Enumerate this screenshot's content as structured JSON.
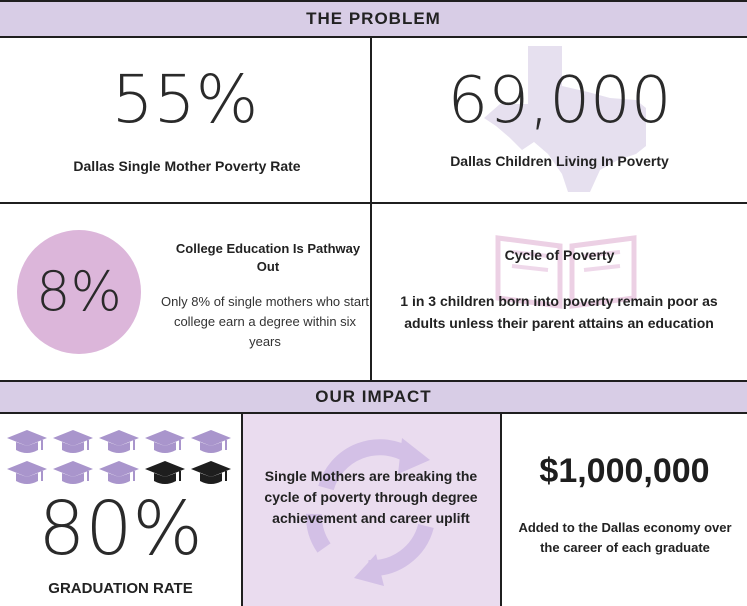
{
  "sections": {
    "problem_title": "THE PROBLEM",
    "impact_title": "OUR IMPACT"
  },
  "stats": {
    "poverty_rate_value": "55%",
    "poverty_rate_label": "Dallas Single Mother Poverty Rate",
    "children_value": "69,000",
    "children_label": "Dallas Children Living In Poverty",
    "college_value": "8%",
    "college_title": "College Education Is Pathway Out",
    "college_text": "Only 8% of single mothers who start college earn a degree within six years",
    "cycle_title": "Cycle of Poverty",
    "cycle_text": "1 in 3 children born into poverty remain poor as adults unless their parent attains an education",
    "grad_value": "80%",
    "grad_label": "GRADUATION RATE",
    "grad_caps_filled": 8,
    "grad_caps_total": 10,
    "breaking_text": "Single Mothers are breaking the cycle of poverty through degree achievement and career uplift",
    "economy_value": "$1,000,000",
    "economy_text": "Added to the Dallas economy over the career of each graduate"
  },
  "colors": {
    "header": "#d8cde6",
    "circle": "#dcb6da",
    "cap_light": "#a995cc",
    "cap_dark": "#1e1e1e",
    "panel": "#eadcef",
    "watermark": "#e6e0ef"
  }
}
